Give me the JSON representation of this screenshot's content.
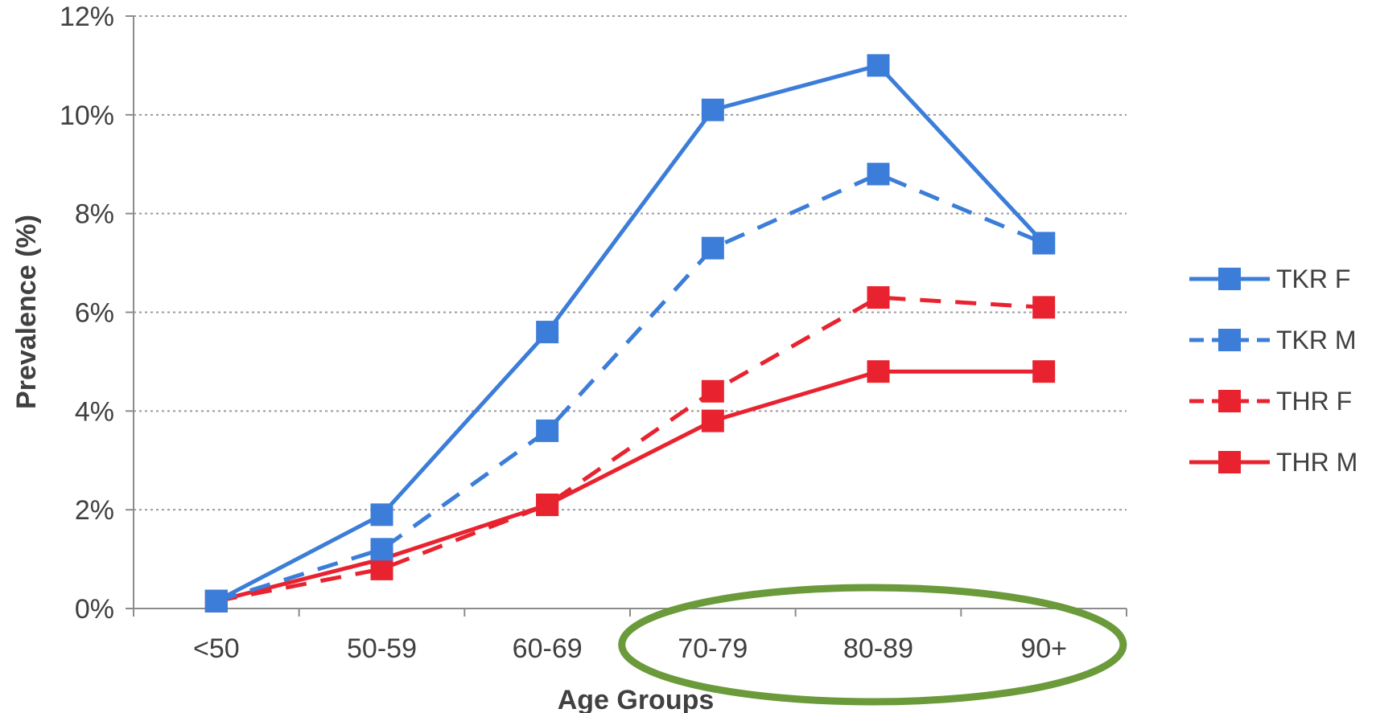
{
  "chart_data": {
    "type": "line",
    "title": "",
    "xlabel": "Age Groups",
    "ylabel": "Prevalence  (%)",
    "categories": [
      "<50",
      "50-59",
      "60-69",
      "70-79",
      "80-89",
      "90+"
    ],
    "y_ticks": [
      "0%",
      "2%",
      "4%",
      "6%",
      "8%",
      "10%",
      "12%"
    ],
    "ylim": [
      0,
      12
    ],
    "y_unit": "%",
    "grid": "horizontal dotted",
    "legend_position": "right",
    "series": [
      {
        "name": "TKR F",
        "values": [
          0.15,
          1.9,
          5.6,
          10.1,
          11.0,
          7.4
        ],
        "color": "#3b7dd8",
        "dash": "solid"
      },
      {
        "name": "TKR M",
        "values": [
          0.15,
          1.2,
          3.6,
          7.3,
          8.8,
          7.4
        ],
        "color": "#3b7dd8",
        "dash": "dashed"
      },
      {
        "name": "THR F",
        "values": [
          0.15,
          0.8,
          2.1,
          4.4,
          6.3,
          6.1
        ],
        "color": "#e8232f",
        "dash": "dashed"
      },
      {
        "name": "THR M",
        "values": [
          0.15,
          1.0,
          2.1,
          3.8,
          4.8,
          4.8
        ],
        "color": "#e8232f",
        "dash": "solid"
      }
    ],
    "annotations": [
      {
        "type": "ellipse",
        "color": "#6a9a3a",
        "label": "",
        "encloses_categories": [
          "70-79",
          "80-89",
          "90+"
        ]
      }
    ]
  }
}
